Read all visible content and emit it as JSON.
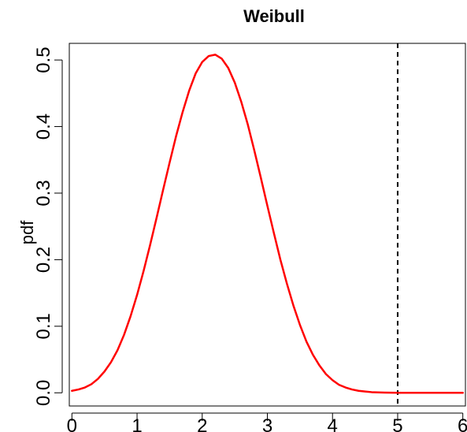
{
  "chart_data": {
    "type": "line",
    "title": "Weibull",
    "xlabel": "",
    "ylabel": "pdf",
    "xlim": [
      -0.04,
      6.04
    ],
    "ylim": [
      -0.0198,
      0.525
    ],
    "x_ticks": [
      0,
      1,
      2,
      3,
      4,
      5,
      6
    ],
    "x_tick_labels": [
      "0",
      "1",
      "2",
      "3",
      "4",
      "5",
      "6"
    ],
    "y_ticks": [
      0.0,
      0.1,
      0.2,
      0.3,
      0.4,
      0.5
    ],
    "y_tick_labels": [
      "0.0",
      "0.1",
      "0.2",
      "0.3",
      "0.4",
      "0.5"
    ],
    "grid": false,
    "series": [
      {
        "color": "#ff0000",
        "x": [
          0.0,
          0.1,
          0.2,
          0.3,
          0.4,
          0.5,
          0.6,
          0.7,
          0.8,
          0.9,
          1.0,
          1.1,
          1.2,
          1.3,
          1.4,
          1.5,
          1.6,
          1.7,
          1.8,
          1.9,
          2.0,
          2.1,
          2.2,
          2.3,
          2.4,
          2.5,
          2.6,
          2.7,
          2.8,
          2.9,
          3.0,
          3.1,
          3.2,
          3.3,
          3.4,
          3.5,
          3.6,
          3.7,
          3.8,
          3.9,
          4.0,
          4.1,
          4.2,
          4.3,
          4.4,
          4.5,
          4.6,
          4.7,
          4.8,
          4.9,
          5.0,
          5.2,
          5.4,
          5.6,
          5.8,
          6.0
        ],
        "y": [
          0.003,
          0.005,
          0.008,
          0.013,
          0.021,
          0.032,
          0.046,
          0.064,
          0.087,
          0.115,
          0.147,
          0.183,
          0.222,
          0.263,
          0.305,
          0.346,
          0.386,
          0.422,
          0.454,
          0.48,
          0.497,
          0.506,
          0.508,
          0.502,
          0.488,
          0.466,
          0.437,
          0.403,
          0.364,
          0.323,
          0.281,
          0.24,
          0.2,
          0.164,
          0.131,
          0.102,
          0.077,
          0.057,
          0.041,
          0.028,
          0.019,
          0.012,
          0.008,
          0.005,
          0.003,
          0.002,
          0.001,
          0.0007,
          0.0004,
          0.0002,
          0.0001,
          0.0,
          0.0,
          0.0,
          0.0,
          0.0
        ]
      }
    ],
    "reference_line": {
      "orientation": "vertical",
      "x": 5,
      "style": "dashed",
      "color": "#000000"
    }
  }
}
